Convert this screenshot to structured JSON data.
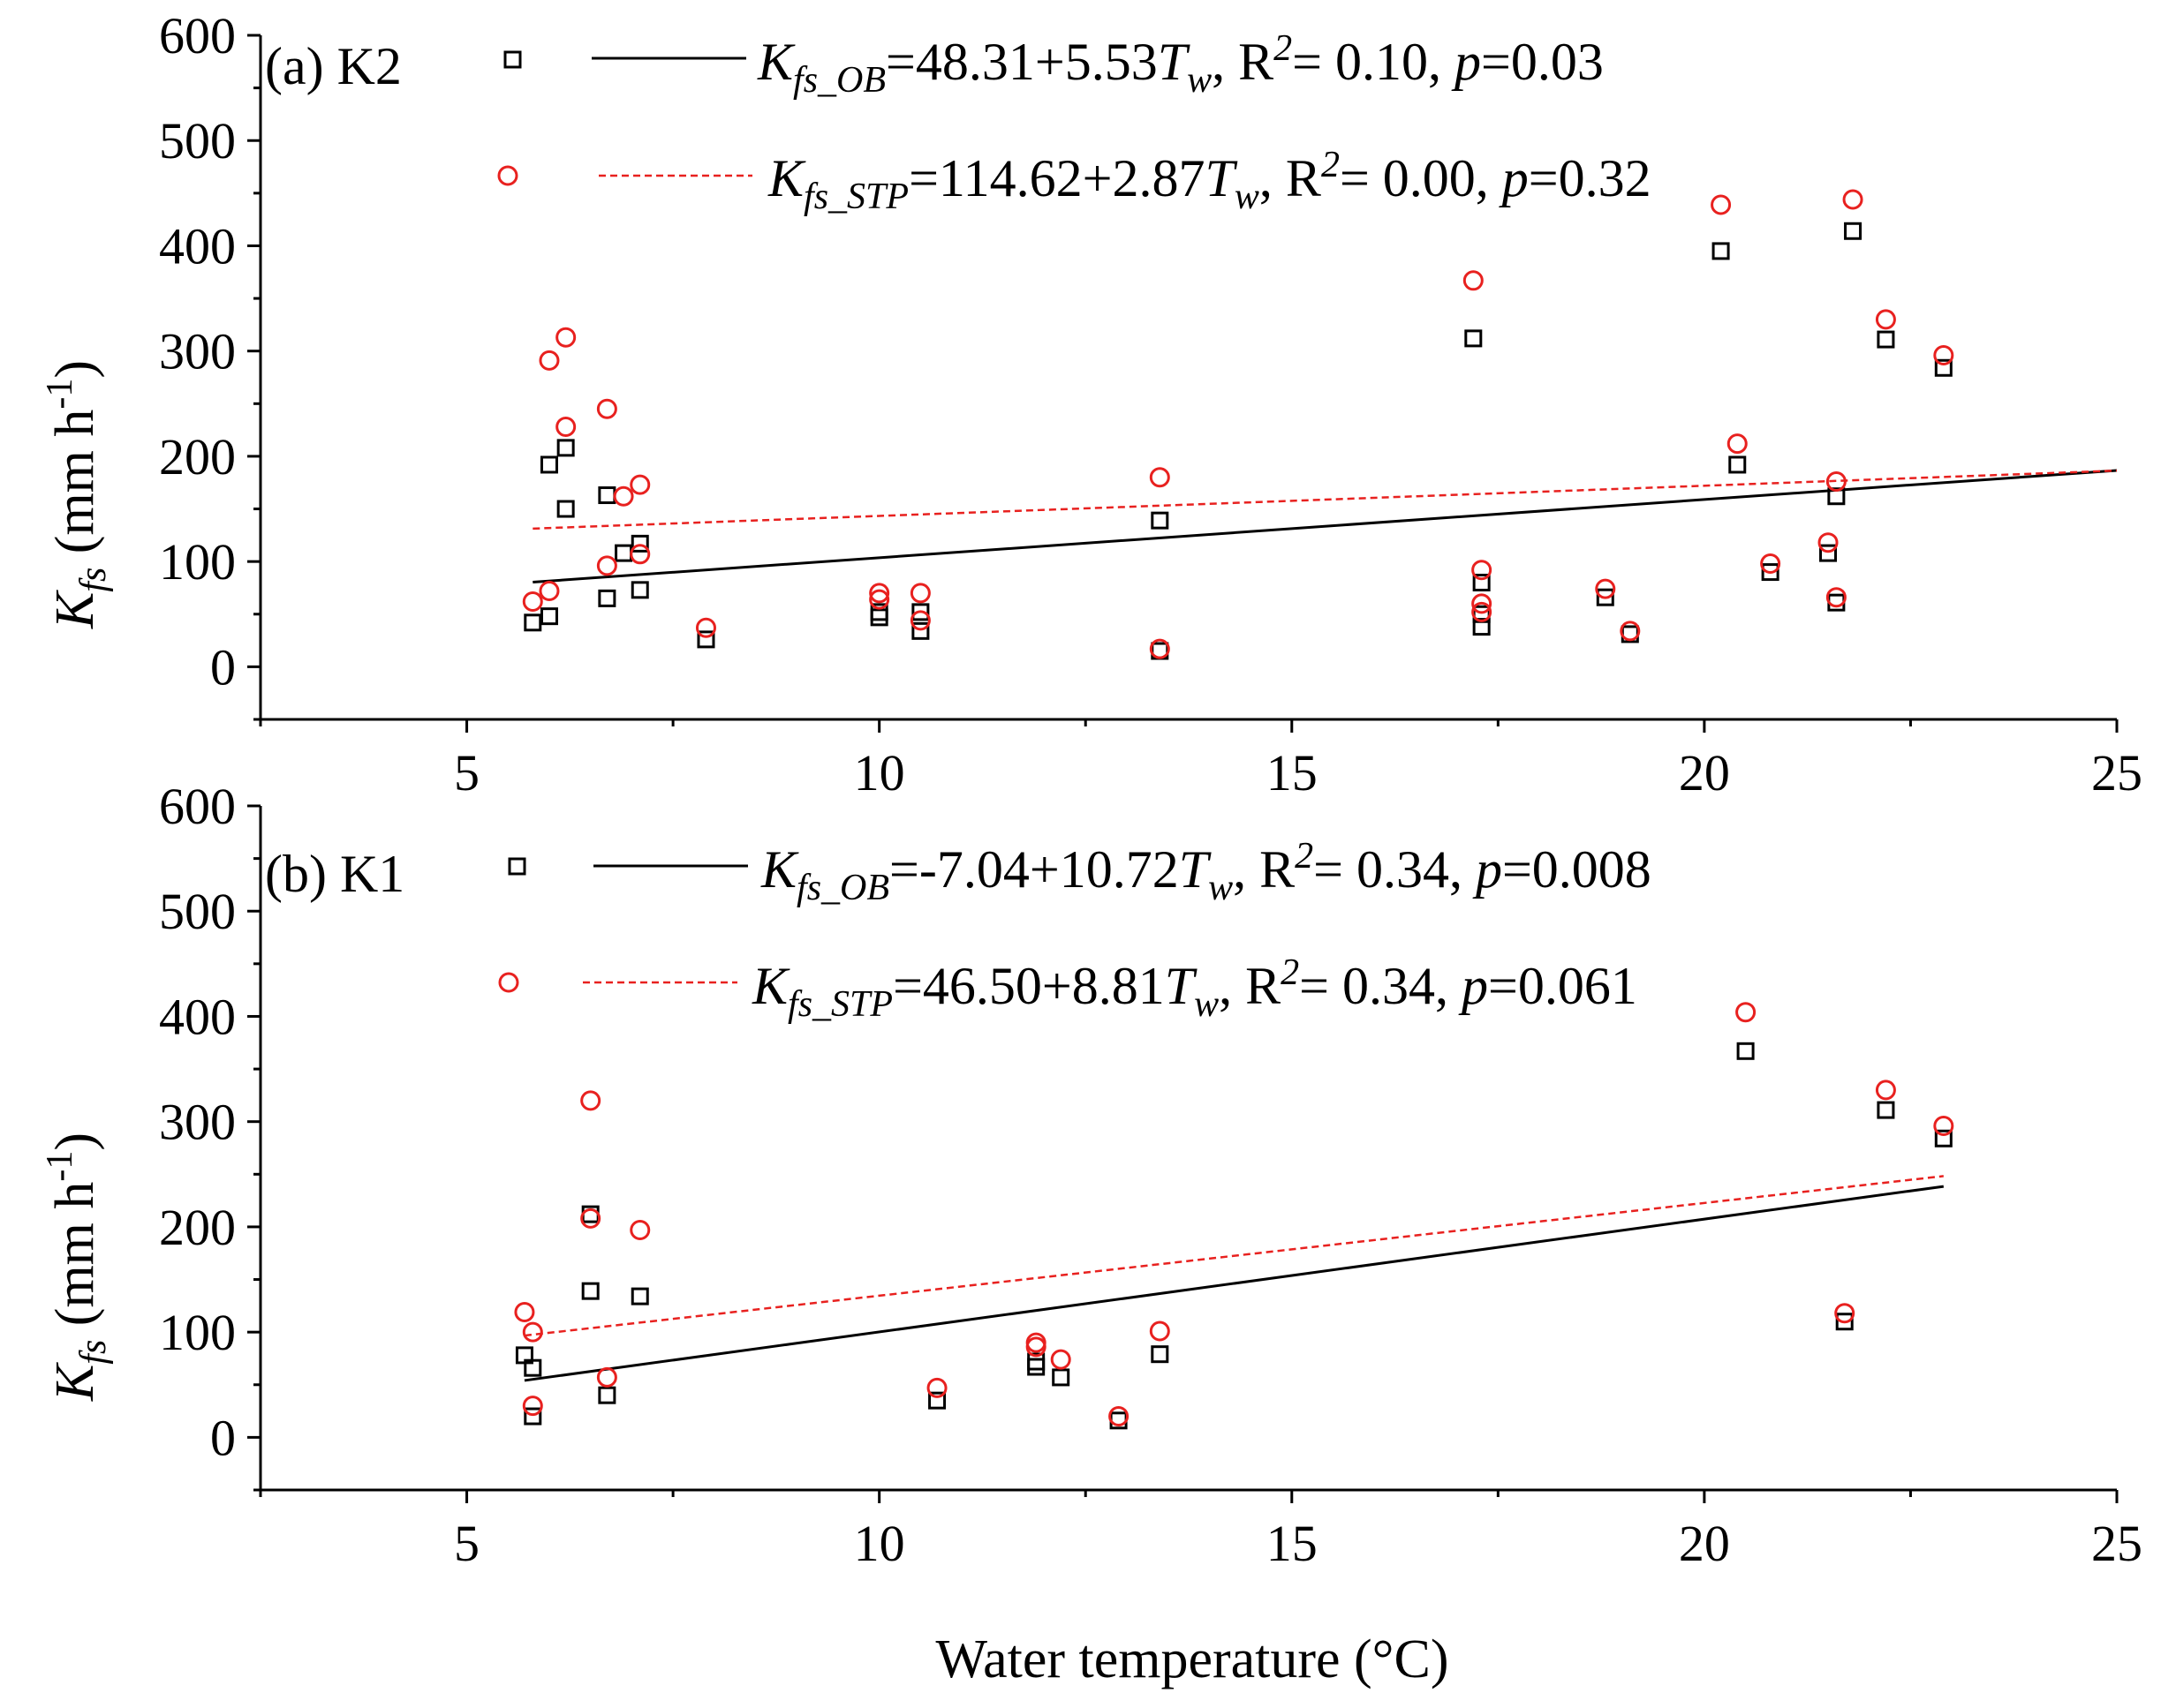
{
  "chart_data": [
    {
      "type": "scatter",
      "panel_label": "(a) K2",
      "xlim": [
        2.5,
        25
      ],
      "ylim": [
        -50,
        600
      ],
      "x_ticks": [
        5,
        10,
        15,
        20,
        25
      ],
      "y_ticks": [
        0,
        100,
        200,
        300,
        400,
        500,
        600
      ],
      "ylabel": "Kfs (mm h-1)",
      "series": [
        {
          "name": "OB",
          "marker": "square",
          "color": "#000000",
          "x": [
            5.8,
            6.0,
            6.0,
            6.2,
            6.2,
            6.7,
            6.7,
            6.9,
            7.1,
            7.1,
            7.9,
            10.0,
            10.0,
            10.5,
            10.5,
            13.4,
            13.4,
            17.2,
            17.3,
            17.3,
            17.3,
            18.8,
            19.1,
            20.2,
            20.4,
            20.8,
            21.5,
            21.6,
            21.6,
            21.8,
            22.2,
            22.9
          ],
          "y": [
            42,
            48,
            192,
            150,
            208,
            65,
            163,
            108,
            73,
            117,
            26,
            47,
            52,
            34,
            52,
            15,
            139,
            312,
            38,
            50,
            80,
            66,
            31,
            395,
            192,
            90,
            108,
            61,
            162,
            414,
            311,
            284
          ]
        },
        {
          "name": "STP",
          "marker": "circle",
          "color": "#e8211f",
          "x": [
            5.8,
            6.0,
            6.0,
            6.2,
            6.2,
            6.7,
            6.7,
            6.9,
            7.1,
            7.1,
            7.9,
            10.0,
            10.0,
            10.5,
            10.5,
            13.4,
            13.4,
            17.2,
            17.3,
            17.3,
            17.3,
            18.8,
            19.1,
            20.2,
            20.4,
            20.8,
            21.5,
            21.6,
            21.6,
            21.8,
            22.2,
            22.9
          ],
          "y": [
            62,
            72,
            291,
            228,
            313,
            96,
            245,
            162,
            107,
            173,
            37,
            64,
            70,
            44,
            70,
            17,
            180,
            367,
            52,
            60,
            92,
            74,
            34,
            439,
            212,
            98,
            118,
            66,
            176,
            444,
            330,
            296
          ]
        }
      ],
      "fits": [
        {
          "name": "OB",
          "style": "solid",
          "color": "#000000",
          "intercept": 48.31,
          "slope": 5.53,
          "x_range": [
            5.8,
            25
          ],
          "label_k": "K",
          "label_sub": "fs_OB",
          "label_eq": "=48.31+5.53",
          "label_t": "T",
          "label_tsub": "w",
          "label_r": ", R",
          "label_rsup": "2",
          "label_rval": "= 0.10, ",
          "label_p": "p",
          "label_pval": "=0.03"
        },
        {
          "name": "STP",
          "style": "dashed",
          "color": "#e8211f",
          "intercept": 114.62,
          "slope": 2.87,
          "x_range": [
            5.8,
            25
          ],
          "label_k": "K",
          "label_sub": "fs_STP",
          "label_eq": "=114.62+2.87",
          "label_t": "T",
          "label_tsub": "w",
          "label_r": ", R",
          "label_rsup": "2",
          "label_rval": "= 0.00, ",
          "label_p": "p",
          "label_pval": "=0.32"
        }
      ]
    },
    {
      "type": "scatter",
      "panel_label": "(b) K1",
      "xlim": [
        2.5,
        25
      ],
      "ylim": [
        -50,
        600
      ],
      "x_ticks": [
        5,
        10,
        15,
        20,
        25
      ],
      "y_ticks": [
        0,
        100,
        200,
        300,
        400,
        500,
        600
      ],
      "ylabel": "Kfs (mm h-1)",
      "series": [
        {
          "name": "OB",
          "marker": "square",
          "color": "#000000",
          "x": [
            5.7,
            5.8,
            5.8,
            6.5,
            6.5,
            6.7,
            7.1,
            10.7,
            11.9,
            11.9,
            12.2,
            12.9,
            13.4,
            20.5,
            21.7,
            22.2,
            22.9
          ],
          "y": [
            78,
            66,
            20,
            212,
            139,
            40,
            134,
            35,
            67,
            72,
            57,
            16,
            79,
            367,
            110,
            311,
            284
          ]
        },
        {
          "name": "STP",
          "marker": "circle",
          "color": "#e8211f",
          "x": [
            5.7,
            5.8,
            5.8,
            6.5,
            6.5,
            6.7,
            7.1,
            10.7,
            11.9,
            11.9,
            12.2,
            12.9,
            13.4,
            20.5,
            21.7,
            22.2,
            22.9
          ],
          "y": [
            119,
            100,
            30,
            320,
            208,
            57,
            197,
            47,
            86,
            90,
            74,
            20,
            101,
            404,
            118,
            330,
            296
          ]
        }
      ],
      "fits": [
        {
          "name": "OB",
          "style": "solid",
          "color": "#000000",
          "intercept": -7.04,
          "slope": 10.72,
          "x_range": [
            5.7,
            22.9
          ],
          "label_k": "K",
          "label_sub": "fs_OB",
          "label_eq": "=-7.04+10.72",
          "label_t": "T",
          "label_tsub": "w",
          "label_r": ", R",
          "label_rsup": "2",
          "label_rval": "= 0.34, ",
          "label_p": "p",
          "label_pval": "=0.008"
        },
        {
          "name": "STP",
          "style": "dashed",
          "color": "#e8211f",
          "intercept": 46.5,
          "slope": 8.81,
          "x_range": [
            5.7,
            22.9
          ],
          "label_k": "K",
          "label_sub": "fs_STP",
          "label_eq": "=46.50+8.81",
          "label_t": "T",
          "label_tsub": "w",
          "label_r": ", R",
          "label_rsup": "2",
          "label_rval": "= 0.34, ",
          "label_p": "p",
          "label_pval": "=0.061"
        }
      ]
    }
  ],
  "labels": {
    "ylabel_k": "K",
    "ylabel_sub": "fs",
    "ylabel_units": " (mm h",
    "ylabel_sup": "-1",
    "ylabel_close": ")",
    "xlabel": "Water temperature (°C)"
  }
}
